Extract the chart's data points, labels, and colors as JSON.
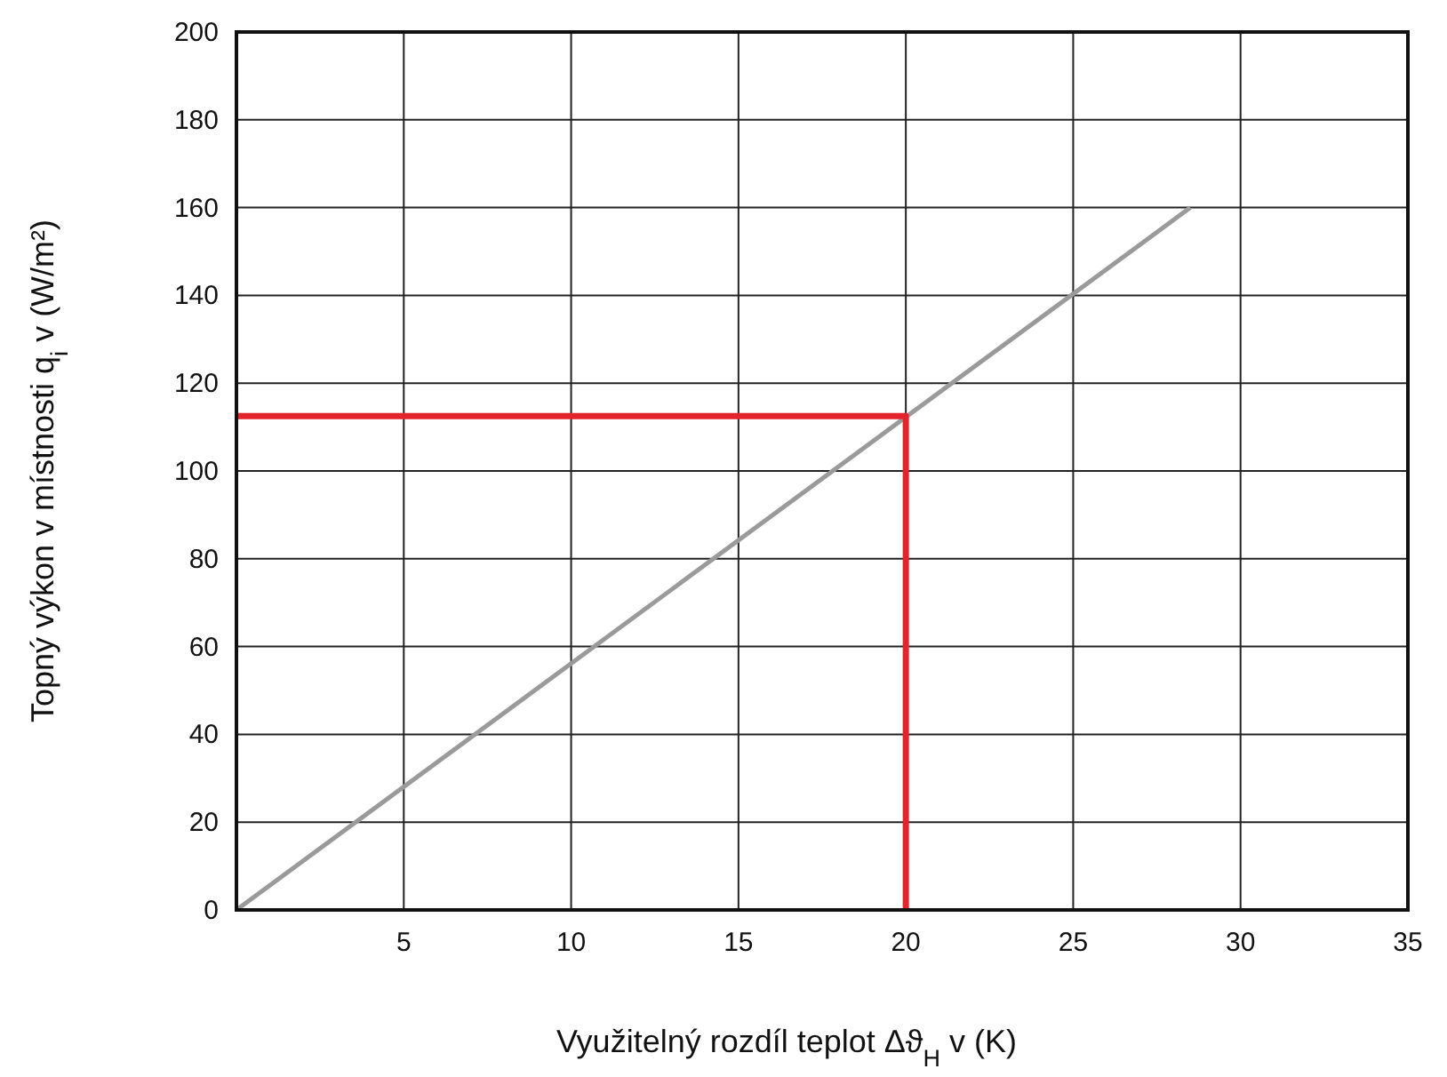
{
  "chart_data": {
    "type": "line",
    "xlabel": "Využitelný rozdíl teplot Δϑ$_{H}$ v (K)",
    "ylabel": "Topný výkon v místnosti q$_{i}$ v (W/m²)",
    "xlim": [
      0,
      35
    ],
    "xticks": [
      5,
      10,
      15,
      20,
      25,
      30,
      35
    ],
    "ylim": [
      0,
      200
    ],
    "yticks": [
      0,
      20,
      40,
      60,
      80,
      100,
      120,
      140,
      160,
      180,
      200
    ],
    "grid": true,
    "marker": "none",
    "line_style": "solid",
    "series": [
      {
        "color": "#9a9a9a",
        "x": [
          0,
          28.5
        ],
        "values": [
          0,
          160
        ]
      },
      {
        "color": "#e3242b",
        "x": [
          0,
          20,
          20
        ],
        "values": [
          112.5,
          112.5,
          0
        ]
      }
    ]
  }
}
